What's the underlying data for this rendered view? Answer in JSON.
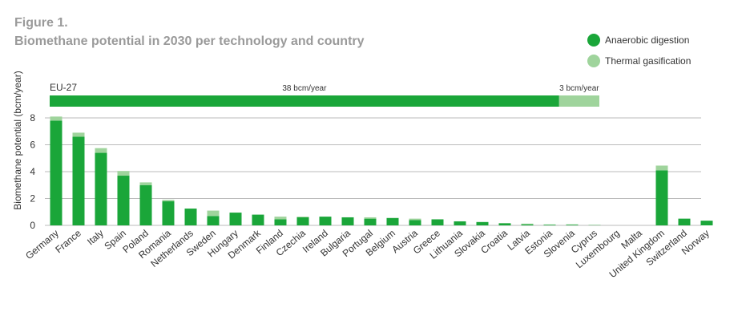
{
  "chart_data": [
    {
      "type": "hbar",
      "stacked": true,
      "categories": [
        "EU-27"
      ],
      "series": [
        {
          "color": "#1aa639",
          "values": [
            38
          ],
          "value_labels": [
            "38 bcm/year"
          ]
        },
        {
          "color": "#9fd49c",
          "values": [
            3
          ],
          "value_labels": [
            "3 bcm/year"
          ]
        }
      ]
    },
    {
      "type": "bar",
      "stacked": true,
      "title": "Figure 1.",
      "subtitle": "Biomethane potential in 2030 per technology and country",
      "y_label": "Biomethane potential (bcm/year)",
      "categories": [
        "Germany",
        "France",
        "Italy",
        "Spain",
        "Poland",
        "Romania",
        "Netherlands",
        "Sweden",
        "Hungary",
        "Denmark",
        "Finland",
        "Czechia",
        "Ireland",
        "Bulgaria",
        "Portugal",
        "Belgium",
        "Austria",
        "Greece",
        "Lithuania",
        "Slovakia",
        "Croatia",
        "Latvia",
        "Estonia",
        "Slovenia",
        "Cyprus",
        "Luxembourg",
        "Malta",
        "United Kingdom",
        "Switzerland",
        "Norway"
      ],
      "series": [
        {
          "name": "Anaerobic digestion",
          "color": "#1aa639",
          "values": [
            7.8,
            6.6,
            5.4,
            3.7,
            3.0,
            1.8,
            1.25,
            0.7,
            0.95,
            0.8,
            0.45,
            0.6,
            0.65,
            0.6,
            0.5,
            0.55,
            0.4,
            0.45,
            0.3,
            0.25,
            0.15,
            0.08,
            0.05,
            0.05,
            0.02,
            0,
            0,
            4.1,
            0.5,
            0.35
          ]
        },
        {
          "name": "Thermal gasification",
          "color": "#9fd49c",
          "values": [
            0.3,
            0.3,
            0.35,
            0.35,
            0.2,
            0.1,
            0,
            0.4,
            0,
            0,
            0.2,
            0.05,
            0,
            0,
            0.1,
            0,
            0.1,
            0,
            0,
            0,
            0.02,
            0.05,
            0.02,
            0.03,
            0.02,
            0,
            0,
            0.35,
            0,
            0
          ]
        }
      ],
      "ylim": [
        0,
        8
      ],
      "yticks": [
        0,
        2,
        4,
        6,
        8
      ],
      "grid": true,
      "legend": "top-right"
    }
  ]
}
